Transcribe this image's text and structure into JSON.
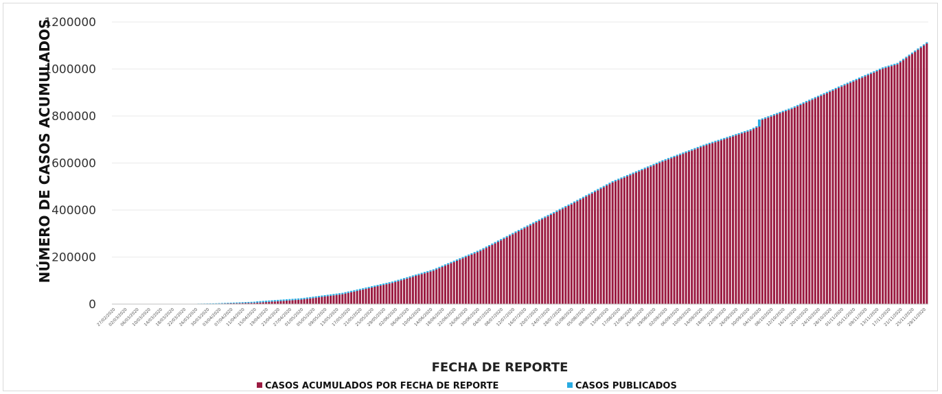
{
  "chart_data": {
    "type": "bar",
    "title": "",
    "xlabel": "FECHA DE REPORTE",
    "ylabel": "NÚMERO DE CASOS ACUMULADOS",
    "ylim": [
      0,
      1200000
    ],
    "yticks": [
      "0",
      "200000",
      "400000",
      "600000",
      "800000",
      "1000000",
      "1200000"
    ],
    "grid": true,
    "legend_position": "bottom",
    "colors": {
      "acumulados": "#9b1c42",
      "publicados": "#29abe2",
      "grid": "#eaeaea"
    },
    "x_start": "2020-02-27",
    "x_end": "2020-11-30",
    "x_tick_every_days": 4,
    "x_tick_labels": [
      "27/02/2020",
      "02/03/2020",
      "06/03/2020",
      "10/03/2020",
      "14/03/2020",
      "18/03/2020",
      "22/03/2020",
      "26/03/2020",
      "30/03/2020",
      "03/04/2020",
      "07/04/2020",
      "11/04/2020",
      "15/04/2020",
      "19/04/2020",
      "23/04/2020",
      "27/04/2020",
      "01/05/2020",
      "05/05/2020",
      "09/05/2020",
      "13/05/2020",
      "17/05/2020",
      "21/05/2020",
      "25/05/2020",
      "29/05/2020",
      "02/06/2020",
      "06/06/2020",
      "10/06/2020",
      "14/06/2020",
      "18/06/2020",
      "22/06/2020",
      "26/06/2020",
      "30/06/2020",
      "04/07/2020",
      "08/07/2020",
      "12/07/2020",
      "16/07/2020",
      "20/07/2020",
      "24/07/2020",
      "28/07/2020",
      "01/08/2020",
      "05/08/2020",
      "09/08/2020",
      "13/08/2020",
      "17/08/2020",
      "21/08/2020",
      "25/08/2020",
      "29/08/2020",
      "02/09/2020",
      "06/09/2020",
      "10/09/2020",
      "14/09/2020",
      "18/09/2020",
      "22/09/2020",
      "26/09/2020",
      "30/09/2020",
      "04/10/2020",
      "08/10/2020",
      "12/10/2020",
      "16/10/2020",
      "20/10/2020",
      "24/10/2020",
      "28/10/2020",
      "01/11/2020",
      "05/11/2020",
      "09/11/2020",
      "13/11/2020",
      "17/11/2020",
      "21/11/2020",
      "25/11/2020",
      "29/11/2020"
    ],
    "series": [
      {
        "name": "CASOS ACUMULADOS POR FECHA DE REPORTE",
        "anchors": [
          [
            "2020-02-27",
            0
          ],
          [
            "2020-03-20",
            200
          ],
          [
            "2020-04-01",
            1500
          ],
          [
            "2020-04-15",
            5000
          ],
          [
            "2020-05-01",
            19000
          ],
          [
            "2020-05-15",
            42000
          ],
          [
            "2020-06-01",
            90000
          ],
          [
            "2020-06-15",
            142000
          ],
          [
            "2020-07-01",
            226000
          ],
          [
            "2020-07-15",
            316000
          ],
          [
            "2020-08-01",
            424000
          ],
          [
            "2020-08-15",
            517000
          ],
          [
            "2020-09-01",
            606000
          ],
          [
            "2020-09-15",
            672000
          ],
          [
            "2020-10-01",
            738000
          ],
          [
            "2020-10-04",
            757000
          ],
          [
            "2020-10-05",
            784000
          ],
          [
            "2020-10-15",
            830000
          ],
          [
            "2020-11-01",
            925000
          ],
          [
            "2020-11-15",
            1001000
          ],
          [
            "2020-11-20",
            1020000
          ],
          [
            "2020-11-30",
            1108000
          ]
        ]
      },
      {
        "name": "CASOS PUBLICADOS",
        "note_values": [
          [
            "2020-10-05",
            785000
          ],
          [
            "2020-11-30",
            1114000
          ]
        ]
      }
    ]
  }
}
